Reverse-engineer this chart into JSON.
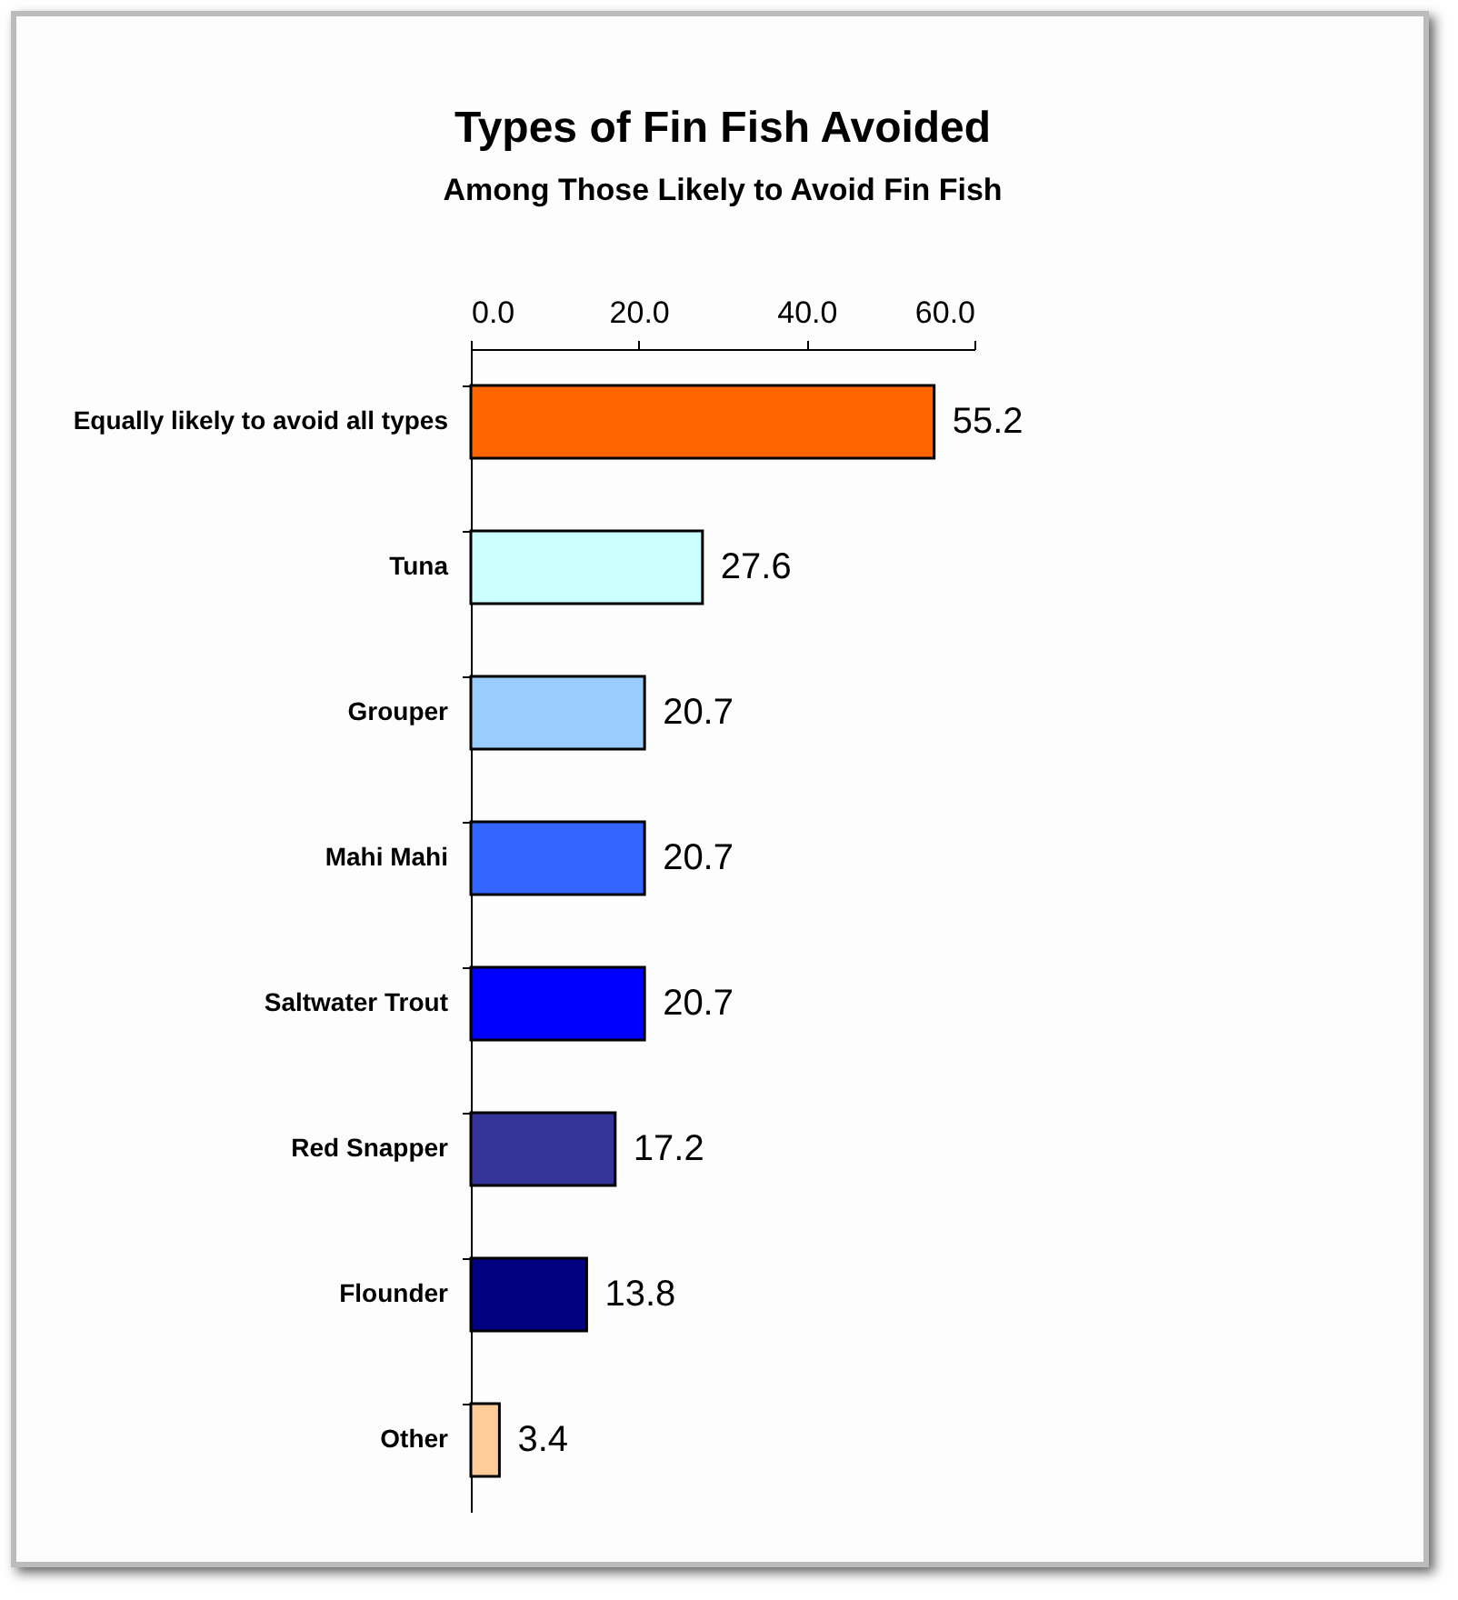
{
  "chart_data": {
    "type": "bar",
    "orientation": "horizontal",
    "title": "Types of Fin Fish Avoided",
    "subtitle": "Among Those Likely to Avoid Fin Fish",
    "categories": [
      "Equally likely to avoid all types",
      "Tuna",
      "Grouper",
      "Mahi Mahi",
      "Saltwater Trout",
      "Red Snapper",
      "Flounder",
      "Other"
    ],
    "values": [
      55.2,
      27.6,
      20.7,
      20.7,
      20.7,
      17.2,
      13.8,
      3.4
    ],
    "colors": [
      "#ff6600",
      "#ccffff",
      "#99ccff",
      "#3366ff",
      "#0000ff",
      "#333399",
      "#000080",
      "#ffcc99"
    ],
    "xlim": [
      0,
      60
    ],
    "xticks": [
      {
        "value": 0,
        "label": "0.0"
      },
      {
        "value": 20,
        "label": "20.0"
      },
      {
        "value": 40,
        "label": "40.0"
      },
      {
        "value": 60,
        "label": "60.0"
      }
    ],
    "data_labels": true,
    "grid": false,
    "legend": false
  }
}
